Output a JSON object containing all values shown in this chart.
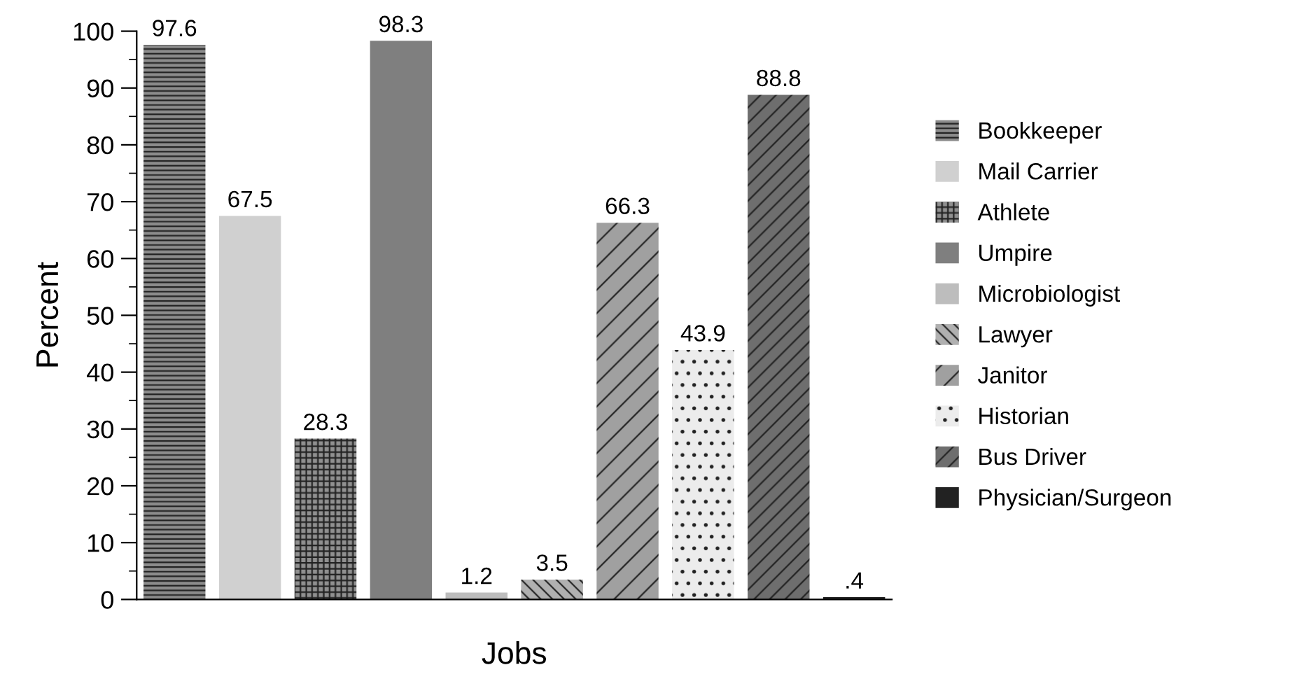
{
  "chart_data": {
    "type": "bar",
    "xlabel": "Jobs",
    "ylabel": "Percent",
    "categories": [
      null,
      null,
      null,
      null,
      null,
      null,
      null,
      null,
      null,
      null
    ],
    "ylim": [
      0,
      100
    ],
    "yticks": [
      0,
      10,
      20,
      30,
      40,
      50,
      60,
      70,
      80,
      90,
      100
    ],
    "grid": false,
    "legend": "right",
    "series": [
      {
        "name": "Bookkeeper",
        "color": "#8c8c8c",
        "values": [
          97.6,
          null,
          null,
          null,
          null,
          null,
          null,
          null,
          null,
          null
        ],
        "value_labels": [
          "97.6",
          null,
          null,
          null,
          null,
          null,
          null,
          null,
          null,
          null
        ]
      },
      {
        "name": "Mail Carrier",
        "color": "#d0d0d0",
        "values": [
          null,
          67.5,
          null,
          null,
          null,
          null,
          null,
          null,
          null,
          null
        ],
        "value_labels": [
          null,
          "67.5",
          null,
          null,
          null,
          null,
          null,
          null,
          null,
          null
        ]
      },
      {
        "name": "Athlete",
        "color": "#909090",
        "values": [
          null,
          null,
          28.3,
          null,
          null,
          null,
          null,
          null,
          null,
          null
        ],
        "value_labels": [
          null,
          null,
          "28.3",
          null,
          null,
          null,
          null,
          null,
          null,
          null
        ]
      },
      {
        "name": "Umpire",
        "color": "#7f7f7f",
        "values": [
          null,
          null,
          null,
          98.3,
          null,
          null,
          null,
          null,
          null,
          null
        ],
        "value_labels": [
          null,
          null,
          null,
          "98.3",
          null,
          null,
          null,
          null,
          null,
          null
        ]
      },
      {
        "name": "Microbiologist",
        "color": "#bdbdbd",
        "values": [
          null,
          null,
          null,
          null,
          1.2,
          null,
          null,
          null,
          null,
          null
        ],
        "value_labels": [
          null,
          null,
          null,
          null,
          "1.2",
          null,
          null,
          null,
          null,
          null
        ]
      },
      {
        "name": "Lawyer",
        "color": "#b0b0b0",
        "values": [
          null,
          null,
          null,
          null,
          null,
          3.5,
          null,
          null,
          null,
          null
        ],
        "value_labels": [
          null,
          null,
          null,
          null,
          null,
          "3.5",
          null,
          null,
          null,
          null
        ]
      },
      {
        "name": "Janitor",
        "color": "#a0a0a0",
        "values": [
          null,
          null,
          null,
          null,
          null,
          null,
          66.3,
          null,
          null,
          null
        ],
        "value_labels": [
          null,
          null,
          null,
          null,
          null,
          null,
          "66.3",
          null,
          null,
          null
        ]
      },
      {
        "name": "Historian",
        "color": "#ececec",
        "values": [
          null,
          null,
          null,
          null,
          null,
          null,
          null,
          43.9,
          null,
          null
        ],
        "value_labels": [
          null,
          null,
          null,
          null,
          null,
          null,
          null,
          "43.9",
          null,
          null
        ]
      },
      {
        "name": "Bus Driver",
        "color": "#6e6e6e",
        "values": [
          null,
          null,
          null,
          null,
          null,
          null,
          null,
          null,
          88.8,
          null
        ],
        "value_labels": [
          null,
          null,
          null,
          null,
          null,
          null,
          null,
          null,
          "88.8",
          null
        ]
      },
      {
        "name": "Physician/Surgeon",
        "color": "#222222",
        "values": [
          null,
          null,
          null,
          null,
          null,
          null,
          null,
          null,
          null,
          0.4
        ],
        "value_labels": [
          null,
          null,
          null,
          null,
          null,
          null,
          null,
          null,
          null,
          ".4"
        ]
      }
    ]
  }
}
